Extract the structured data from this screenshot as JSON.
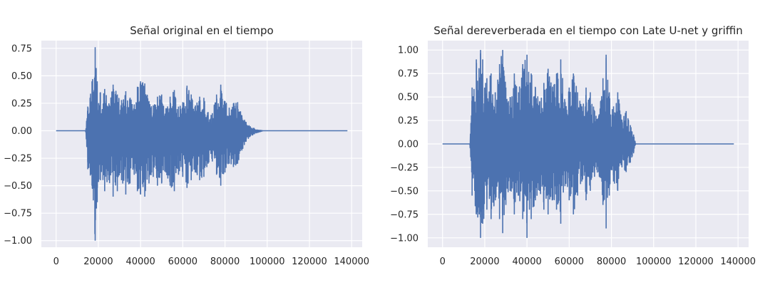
{
  "chart_data": [
    {
      "type": "line",
      "title": "Señal original en el tiempo",
      "xlabel": "",
      "ylabel": "",
      "xlim": [
        -7000,
        145000
      ],
      "ylim": [
        -1.06,
        0.82
      ],
      "xticks": [
        0,
        20000,
        40000,
        60000,
        80000,
        100000,
        120000,
        140000
      ],
      "xtick_labels": [
        "0",
        "20000",
        "40000",
        "60000",
        "80000",
        "100000",
        "120000",
        "140000"
      ],
      "yticks": [
        0.75,
        0.5,
        0.25,
        0.0,
        -0.25,
        -0.5,
        -0.75,
        -1.0
      ],
      "ytick_labels": [
        "0.75",
        "0.50",
        "0.25",
        "0.00",
        "−0.25",
        "−0.50",
        "−0.75",
        "−1.00"
      ],
      "grid": true,
      "color": "#4c72b0",
      "series": [
        {
          "x": [
            0,
            14000,
            15000,
            17000,
            18500,
            19500,
            21000,
            23000,
            25000,
            27000,
            29000,
            31000,
            33000,
            35000,
            37000,
            38500,
            40000,
            42000,
            44000,
            46000,
            48000,
            50000,
            52000,
            54000,
            56000,
            58000,
            60000,
            62000,
            64000,
            66000,
            68000,
            70000,
            72000,
            74000,
            76000,
            78000,
            80000,
            82000,
            84000,
            86000,
            88000,
            90000,
            92000,
            95000,
            98000,
            138000
          ],
          "upper": [
            0.0,
            0.0,
            0.22,
            0.45,
            0.76,
            0.45,
            0.35,
            0.38,
            0.25,
            0.42,
            0.33,
            0.28,
            0.36,
            0.3,
            0.24,
            0.4,
            0.45,
            0.43,
            0.27,
            0.23,
            0.31,
            0.33,
            0.2,
            0.31,
            0.37,
            0.22,
            0.26,
            0.41,
            0.33,
            0.23,
            0.31,
            0.3,
            0.17,
            0.16,
            0.33,
            0.42,
            0.27,
            0.21,
            0.25,
            0.26,
            0.14,
            0.08,
            0.04,
            0.01,
            0.0,
            0.0
          ],
          "lower": [
            0.0,
            0.0,
            -0.35,
            -0.5,
            -1.0,
            -0.65,
            -0.45,
            -0.55,
            -0.45,
            -0.6,
            -0.55,
            -0.45,
            -0.58,
            -0.48,
            -0.4,
            -0.55,
            -0.58,
            -0.6,
            -0.48,
            -0.42,
            -0.5,
            -0.48,
            -0.38,
            -0.5,
            -0.55,
            -0.4,
            -0.42,
            -0.52,
            -0.45,
            -0.38,
            -0.45,
            -0.42,
            -0.3,
            -0.28,
            -0.4,
            -0.5,
            -0.38,
            -0.3,
            -0.33,
            -0.3,
            -0.18,
            -0.1,
            -0.05,
            -0.02,
            0.0,
            0.0
          ]
        }
      ]
    },
    {
      "type": "line",
      "title": "Señal dereverberada en el tiempo con Late U-net y griffin",
      "xlabel": "",
      "ylabel": "",
      "xlim": [
        -7000,
        145000
      ],
      "ylim": [
        -1.1,
        1.1
      ],
      "xticks": [
        0,
        20000,
        40000,
        60000,
        80000,
        100000,
        120000,
        140000
      ],
      "xtick_labels": [
        "0",
        "20000",
        "40000",
        "60000",
        "80000",
        "100000",
        "120000",
        "140000"
      ],
      "yticks": [
        1.0,
        0.75,
        0.5,
        0.25,
        0.0,
        -0.25,
        -0.5,
        -0.75,
        -1.0
      ],
      "ytick_labels": [
        "1.00",
        "0.75",
        "0.50",
        "0.25",
        "0.00",
        "−0.25",
        "−0.50",
        "−0.75",
        "−1.00"
      ],
      "grid": true,
      "color": "#4c72b0",
      "series": [
        {
          "x": [
            0,
            13000,
            14000,
            16000,
            18000,
            19000,
            21000,
            23000,
            25000,
            27000,
            28500,
            30000,
            32000,
            34000,
            36000,
            38000,
            40000,
            42000,
            44000,
            46000,
            48000,
            50000,
            52000,
            54000,
            56000,
            58000,
            60000,
            62000,
            64000,
            66000,
            68000,
            70000,
            72000,
            74000,
            76000,
            77500,
            79000,
            81000,
            83000,
            85000,
            87000,
            89000,
            90500,
            91500,
            138000
          ],
          "upper": [
            0.0,
            0.0,
            0.6,
            0.9,
            1.0,
            0.9,
            0.7,
            0.75,
            0.55,
            0.85,
            1.0,
            0.6,
            0.5,
            0.75,
            0.55,
            0.85,
            0.95,
            0.75,
            0.6,
            0.45,
            0.65,
            0.8,
            0.6,
            0.75,
            0.9,
            0.45,
            0.6,
            0.75,
            0.55,
            0.4,
            0.6,
            0.55,
            0.35,
            0.3,
            0.7,
            0.95,
            0.55,
            0.4,
            0.55,
            0.25,
            0.35,
            0.2,
            0.1,
            0.0,
            0.0
          ],
          "lower": [
            0.0,
            0.0,
            -0.55,
            -0.75,
            -1.0,
            -0.85,
            -0.7,
            -0.8,
            -0.6,
            -0.8,
            -0.95,
            -0.65,
            -0.5,
            -0.75,
            -0.55,
            -0.8,
            -1.0,
            -0.8,
            -0.6,
            -0.5,
            -0.7,
            -0.75,
            -0.6,
            -0.7,
            -0.85,
            -0.45,
            -0.6,
            -0.75,
            -0.55,
            -0.4,
            -0.6,
            -0.5,
            -0.35,
            -0.3,
            -0.65,
            -0.9,
            -0.55,
            -0.4,
            -0.5,
            -0.25,
            -0.3,
            -0.2,
            -0.1,
            0.0,
            0.0
          ]
        }
      ]
    }
  ]
}
